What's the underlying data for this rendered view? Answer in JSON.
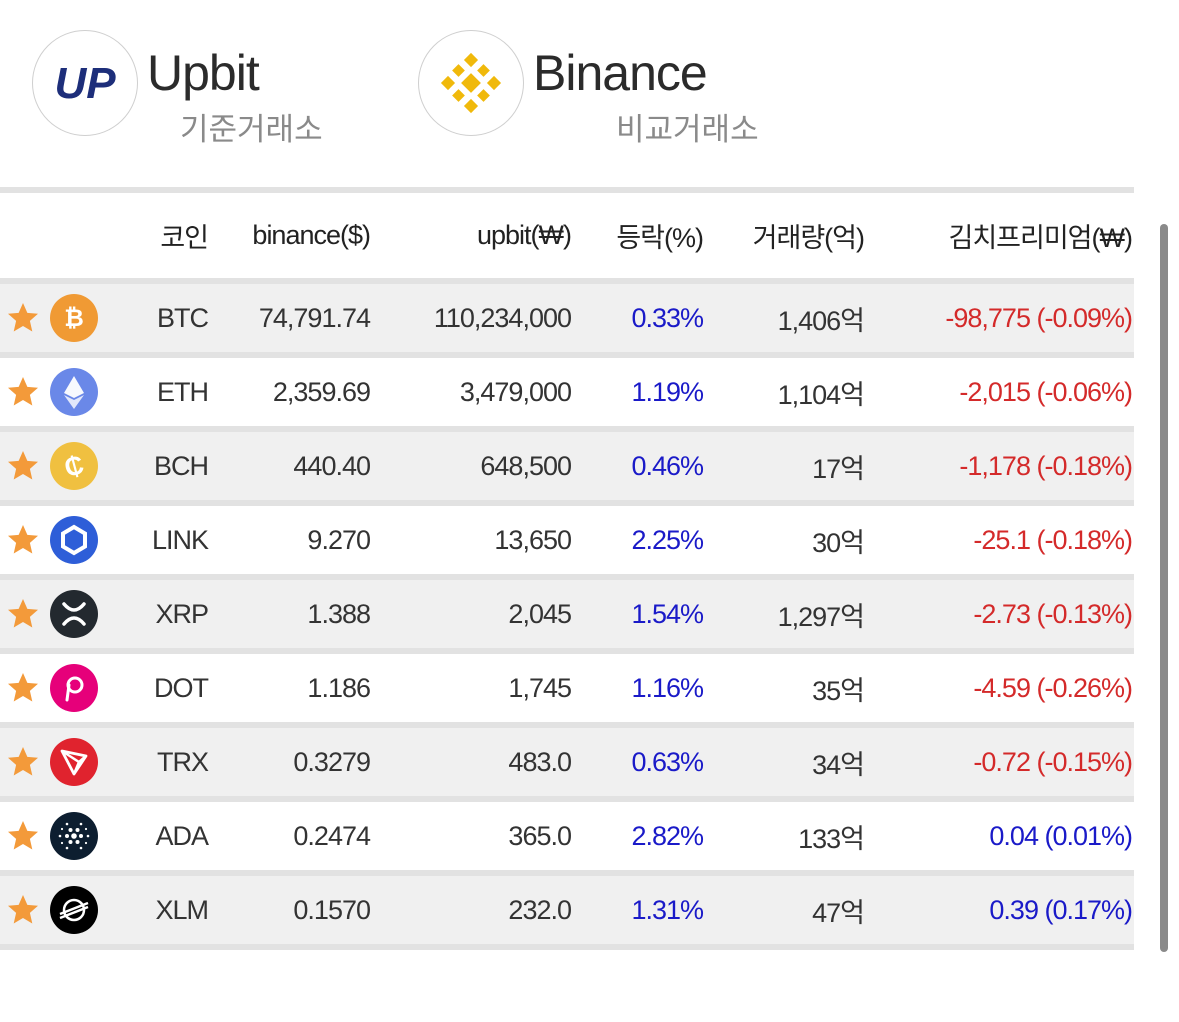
{
  "exchanges": {
    "base": {
      "name": "Upbit",
      "sub": "기준거래소",
      "logo_text": "UP",
      "logo_icon": "upbit-logo",
      "color": "#1d2e7a"
    },
    "compare": {
      "name": "Binance",
      "sub": "비교거래소",
      "logo_icon": "binance-logo",
      "color": "#f0b90b"
    }
  },
  "table": {
    "headers": {
      "coin": "코인",
      "binance": "binance($)",
      "upbit": "upbit(₩)",
      "change": "등락(%)",
      "volume": "거래량(억)",
      "kimchi": "김치프리미엄(₩)"
    },
    "rows": [
      {
        "symbol": "BTC",
        "binance": "74,791.74",
        "upbit": "110,234,000",
        "change": "0.33%",
        "volume": "1,406억",
        "kimchi": "-98,775 (-0.09%)",
        "kimchi_sign": "neg",
        "icon": "bitcoin-icon",
        "icon_color": "#f09a34"
      },
      {
        "symbol": "ETH",
        "binance": "2,359.69",
        "upbit": "3,479,000",
        "change": "1.19%",
        "volume": "1,104억",
        "kimchi": "-2,015 (-0.06%)",
        "kimchi_sign": "neg",
        "icon": "ethereum-icon",
        "icon_color": "#6a88e8"
      },
      {
        "symbol": "BCH",
        "binance": "440.40",
        "upbit": "648,500",
        "change": "0.46%",
        "volume": "17억",
        "kimchi": "-1,178 (-0.18%)",
        "kimchi_sign": "neg",
        "icon": "bitcoin-cash-icon",
        "icon_color": "#f0c040"
      },
      {
        "symbol": "LINK",
        "binance": "9.270",
        "upbit": "13,650",
        "change": "2.25%",
        "volume": "30억",
        "kimchi": "-25.1 (-0.18%)",
        "kimchi_sign": "neg",
        "icon": "chainlink-icon",
        "icon_color": "#2e5ed8"
      },
      {
        "symbol": "XRP",
        "binance": "1.388",
        "upbit": "2,045",
        "change": "1.54%",
        "volume": "1,297억",
        "kimchi": "-2.73 (-0.13%)",
        "kimchi_sign": "neg",
        "icon": "xrp-icon",
        "icon_color": "#23292f"
      },
      {
        "symbol": "DOT",
        "binance": "1.186",
        "upbit": "1,745",
        "change": "1.16%",
        "volume": "35억",
        "kimchi": "-4.59 (-0.26%)",
        "kimchi_sign": "neg",
        "icon": "polkadot-icon",
        "icon_color": "#e6007a"
      },
      {
        "symbol": "TRX",
        "binance": "0.3279",
        "upbit": "483.0",
        "change": "0.63%",
        "volume": "34억",
        "kimchi": "-0.72 (-0.15%)",
        "kimchi_sign": "neg",
        "icon": "tron-icon",
        "icon_color": "#e0232e"
      },
      {
        "symbol": "ADA",
        "binance": "0.2474",
        "upbit": "365.0",
        "change": "2.82%",
        "volume": "133억",
        "kimchi": "0.04 (0.01%)",
        "kimchi_sign": "pos",
        "icon": "cardano-icon",
        "icon_color": "#0d1e30"
      },
      {
        "symbol": "XLM",
        "binance": "0.1570",
        "upbit": "232.0",
        "change": "1.31%",
        "volume": "47억",
        "kimchi": "0.39 (0.17%)",
        "kimchi_sign": "pos",
        "icon": "stellar-icon",
        "icon_color": "#000000"
      }
    ]
  },
  "colors": {
    "positive": "#1a1ac8",
    "negative": "#d42a2a",
    "star": "#f39a3a"
  }
}
